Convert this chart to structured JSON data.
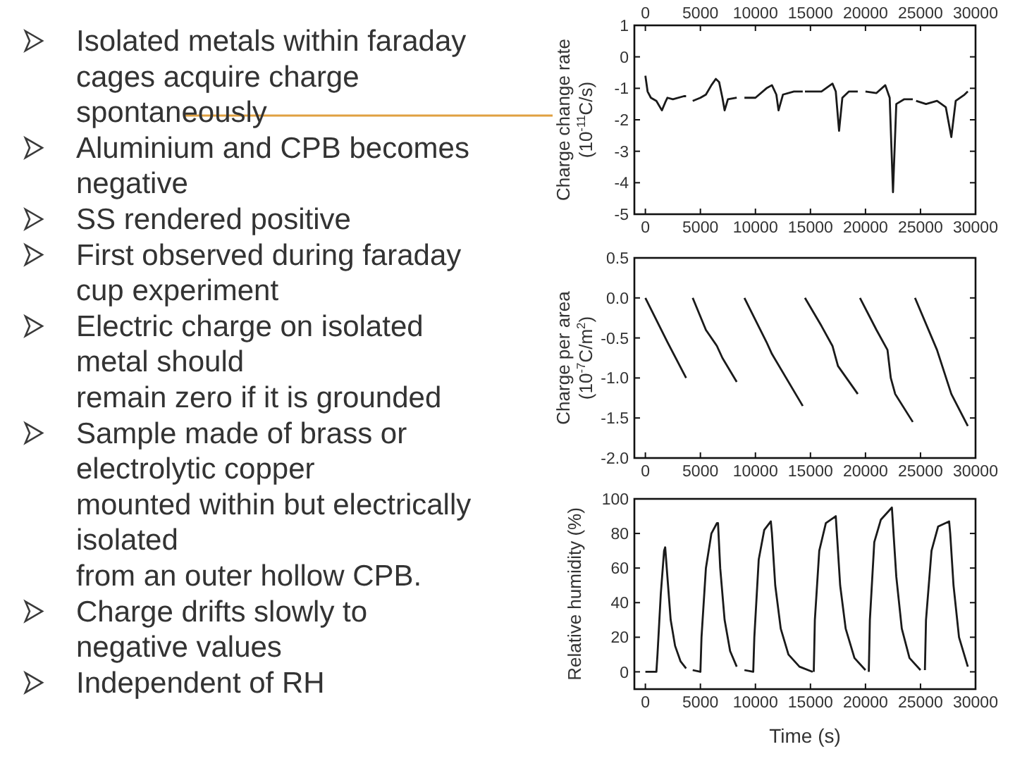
{
  "chart_data": [
    {
      "type": "other",
      "annotations": [
        "Isolated metals within faraday\ncages acquire charge\nspontaneously",
        "Aluminium and CPB becomes\nnegative",
        "SS rendered positive",
        "First observed during faraday\ncup experiment",
        "Electric charge on isolated\nmetal should\nremain zero if it is grounded",
        "Sample made of brass or\nelectrolytic copper\nmounted within but electrically\nisolated\nfrom an outer hollow CPB.",
        "Charge drifts slowly to\nnegative values",
        "Independent of RH"
      ]
    },
    {
      "type": "line",
      "ylabel": "Charge change rate\n(10$^{-11}$C/s)",
      "xlim": [
        -1000,
        30000
      ],
      "xticks": [
        0,
        5000,
        10000,
        15000,
        20000,
        25000,
        30000
      ],
      "x2lim": [
        -1000,
        30000
      ],
      "x2ticks": [
        0,
        5000,
        10000,
        15000,
        20000,
        25000,
        30000
      ],
      "ylim": [
        -5,
        1
      ],
      "yticks": [
        -5,
        -4,
        -3,
        -2,
        -1,
        0,
        1
      ],
      "x": [
        0,
        200,
        500,
        1000,
        1500,
        1800,
        2000,
        2500,
        3500,
        3700,
        4000,
        4300,
        5000,
        5500,
        6000,
        6400,
        6700,
        7000,
        7200,
        7500,
        8300,
        8600,
        9000,
        9500,
        10000,
        11000,
        11500,
        11900,
        12100,
        12500,
        13500,
        14300,
        14400,
        14500,
        16000,
        17000,
        17300,
        17600,
        17900,
        18500,
        19300,
        19600,
        20000,
        21000,
        21800,
        22200,
        22500,
        22800,
        23500,
        24300,
        24450,
        24600,
        25500,
        26500,
        27300,
        27800,
        28200,
        29000,
        29300
      ],
      "series": [
        {
          "color": "#1a1a1a",
          "values": [
            -0.6,
            -1.1,
            -1.3,
            -1.4,
            -1.7,
            -1.45,
            -1.3,
            -1.35,
            -1.25,
            -1.25,
            null,
            -1.4,
            -1.3,
            -1.2,
            -0.9,
            -0.7,
            -0.8,
            -1.3,
            -1.7,
            -1.35,
            -1.3,
            null,
            -1.3,
            -1.3,
            -1.3,
            -1.0,
            -0.9,
            -1.2,
            -1.7,
            -1.2,
            -1.1,
            -1.1,
            null,
            -1.1,
            -1.1,
            -0.85,
            -1.1,
            -2.35,
            -1.3,
            -1.1,
            -1.1,
            null,
            -1.1,
            -1.15,
            -0.9,
            -1.3,
            -4.3,
            -1.5,
            -1.35,
            -1.35,
            null,
            -1.4,
            -1.5,
            -1.4,
            -1.6,
            -2.55,
            -1.4,
            -1.2,
            -1.1
          ]
        }
      ]
    },
    {
      "type": "line",
      "ylabel": "Charge per area\n(10$^{-7}$C/m$^{2}$)",
      "xlim": [
        -1000,
        30000
      ],
      "xticks": [
        0,
        5000,
        10000,
        15000,
        20000,
        25000,
        30000
      ],
      "ylim": [
        -2,
        0.5
      ],
      "yticks": [
        {
          "value": -2,
          "label": "-2.0"
        },
        {
          "value": -1.5,
          "label": "-1.5"
        },
        {
          "value": -1,
          "label": "-1.0"
        },
        {
          "value": -0.5,
          "label": "-0.5"
        },
        {
          "value": 0,
          "label": "0.0"
        },
        {
          "value": 0.5,
          "label": "0.5"
        }
      ],
      "x": [
        0,
        2000,
        3700,
        4000,
        4300,
        5500,
        6500,
        7000,
        8300,
        8600,
        9000,
        11000,
        11500,
        14300,
        14400,
        14500,
        16000,
        17000,
        17500,
        19300,
        19400,
        19500,
        21000,
        22000,
        22300,
        22700,
        24300,
        24400,
        24500,
        26500,
        27800,
        29300
      ],
      "series": [
        {
          "color": "#1a1a1a",
          "values": [
            0,
            -0.55,
            -1.0,
            null,
            0,
            -0.4,
            -0.6,
            -0.75,
            -1.05,
            null,
            0,
            -0.55,
            -0.7,
            -1.35,
            null,
            0,
            -0.35,
            -0.6,
            -0.85,
            -1.2,
            null,
            0,
            -0.4,
            -0.65,
            -1.0,
            -1.2,
            -1.55,
            null,
            0,
            -0.65,
            -1.2,
            -1.6
          ]
        }
      ]
    },
    {
      "type": "line",
      "xlabel": "Time (s)",
      "ylabel": "Relative humidity (%)",
      "xlim": [
        -1000,
        30000
      ],
      "xticks": [
        0,
        5000,
        10000,
        15000,
        20000,
        25000,
        30000
      ],
      "ylim": [
        -10,
        100
      ],
      "yticks": [
        0,
        20,
        40,
        60,
        80,
        100
      ],
      "x": [
        0,
        1000,
        1100,
        1400,
        1700,
        1800,
        2000,
        2300,
        2700,
        3200,
        3700,
        4000,
        4300,
        5000,
        5100,
        5500,
        6000,
        6500,
        6600,
        6800,
        7200,
        7700,
        8300,
        8600,
        9000,
        9800,
        9900,
        10300,
        10800,
        11400,
        11500,
        11800,
        12300,
        13000,
        14000,
        15200,
        15250,
        15300,
        15400,
        15800,
        16400,
        17300,
        17400,
        17700,
        18200,
        19000,
        20000,
        20150,
        20300,
        20400,
        20800,
        21400,
        22400,
        22500,
        22800,
        23300,
        24000,
        25000,
        25200,
        25400,
        25500,
        26000,
        26600,
        27600,
        27700,
        28000,
        28500,
        29300
      ],
      "series": [
        {
          "color": "#1a1a1a",
          "values": [
            0,
            0,
            10,
            45,
            70,
            72,
            55,
            30,
            15,
            6,
            2,
            null,
            1,
            0,
            20,
            60,
            80,
            86,
            86,
            60,
            30,
            12,
            3,
            null,
            1,
            0,
            20,
            65,
            82,
            87,
            80,
            50,
            25,
            10,
            3,
            0,
            null,
            0,
            30,
            70,
            86,
            90,
            80,
            50,
            25,
            8,
            1,
            null,
            0,
            30,
            75,
            88,
            95,
            85,
            55,
            25,
            8,
            1,
            null,
            1,
            30,
            70,
            84,
            87,
            80,
            50,
            20,
            3
          ]
        }
      ]
    }
  ]
}
